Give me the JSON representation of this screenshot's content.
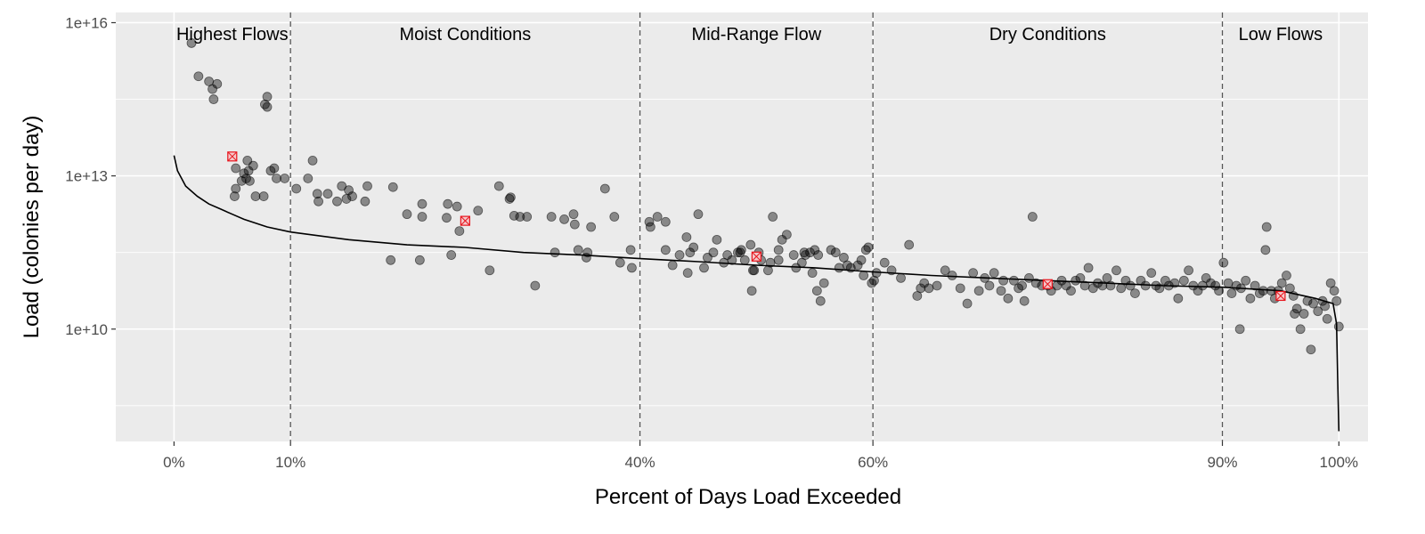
{
  "chart_data": {
    "type": "scatter",
    "title": "",
    "xlabel": "Percent of Days Load Exceeded",
    "ylabel": "Load (colonies per day)",
    "x_unit": "percent",
    "y_scale": "log10",
    "xlim": [
      -5,
      102.5
    ],
    "ylim_log10": [
      7.8,
      16.2
    ],
    "x_ticks": [
      {
        "value": 0,
        "label": "0%"
      },
      {
        "value": 10,
        "label": "10%"
      },
      {
        "value": 40,
        "label": "40%"
      },
      {
        "value": 60,
        "label": "60%"
      },
      {
        "value": 90,
        "label": "90%"
      },
      {
        "value": 100,
        "label": "100%"
      }
    ],
    "y_ticks": [
      {
        "value": 10000000000.0,
        "label": "1e+10"
      },
      {
        "value": 10000000000000.0,
        "label": "1e+13"
      },
      {
        "value": 1e+16,
        "label": "1e+16"
      }
    ],
    "y_minor_ticks_log10": [
      8.5,
      11.5,
      14.5
    ],
    "zone_boundaries": [
      10,
      40,
      60,
      90
    ],
    "zones": [
      {
        "label": "Highest Flows",
        "x": 5
      },
      {
        "label": "Moist Conditions",
        "x": 25
      },
      {
        "label": "Mid-Range Flow",
        "x": 50
      },
      {
        "label": "Dry Conditions",
        "x": 75
      },
      {
        "label": "Low Flows",
        "x": 95
      }
    ],
    "grid": true,
    "legend": "none",
    "colors": {
      "panel_background": "#ebebeb",
      "grid_line": "#ffffff",
      "points": "#000000",
      "curve": "#000000",
      "zone_line": "#555555",
      "marker": "#e8141c",
      "marker_fill": "#f4c7c9"
    },
    "series": [
      {
        "kind": "points",
        "points": [
          [
            1.5,
            15.6
          ],
          [
            2.1,
            14.95
          ],
          [
            3,
            14.85
          ],
          [
            3.3,
            14.7
          ],
          [
            3.4,
            14.5
          ],
          [
            3.7,
            14.8
          ],
          [
            5.2,
            12.6
          ],
          [
            5.3,
            12.75
          ],
          [
            5.3,
            13.15
          ],
          [
            5.8,
            12.9
          ],
          [
            6,
            13.05
          ],
          [
            6.2,
            12.95
          ],
          [
            6.3,
            13.3
          ],
          [
            6.4,
            13.1
          ],
          [
            6.5,
            12.9
          ],
          [
            6.8,
            13.2
          ],
          [
            7,
            12.6
          ],
          [
            7.7,
            12.6
          ],
          [
            7.8,
            14.4
          ],
          [
            8,
            14.35
          ],
          [
            8,
            14.55
          ],
          [
            8.3,
            13.1
          ],
          [
            8.6,
            13.15
          ],
          [
            8.8,
            12.95
          ],
          [
            9.5,
            12.95
          ],
          [
            10.5,
            12.75
          ],
          [
            11.5,
            12.95
          ],
          [
            11.9,
            13.3
          ],
          [
            12.3,
            12.65
          ],
          [
            12.4,
            12.5
          ],
          [
            13.2,
            12.65
          ],
          [
            14,
            12.5
          ],
          [
            14.4,
            12.8
          ],
          [
            14.8,
            12.55
          ],
          [
            15,
            12.72
          ],
          [
            15.3,
            12.6
          ],
          [
            16.4,
            12.5
          ],
          [
            16.6,
            12.8
          ],
          [
            18.6,
            11.35
          ],
          [
            18.8,
            12.78
          ],
          [
            20,
            12.25
          ],
          [
            21.1,
            11.35
          ],
          [
            21.3,
            12.45
          ],
          [
            21.3,
            12.2
          ],
          [
            23.4,
            12.18
          ],
          [
            23.5,
            12.45
          ],
          [
            23.8,
            11.45
          ],
          [
            24.3,
            12.4
          ],
          [
            24.5,
            11.92
          ],
          [
            26.1,
            12.32
          ],
          [
            27.1,
            11.15
          ],
          [
            27.9,
            12.8
          ],
          [
            28.8,
            12.55
          ],
          [
            28.9,
            12.58
          ],
          [
            29.2,
            12.22
          ],
          [
            29.7,
            12.2
          ],
          [
            30.3,
            12.2
          ],
          [
            31,
            10.85
          ],
          [
            32.4,
            12.2
          ],
          [
            32.7,
            11.5
          ],
          [
            33.5,
            12.15
          ],
          [
            34.3,
            12.25
          ],
          [
            34.4,
            12.05
          ],
          [
            34.7,
            11.55
          ],
          [
            35.4,
            11.4
          ],
          [
            35.5,
            11.5
          ],
          [
            35.8,
            12.0
          ],
          [
            37,
            12.75
          ],
          [
            37.8,
            12.2
          ],
          [
            38.3,
            11.3
          ],
          [
            39.2,
            11.55
          ],
          [
            39.3,
            11.2
          ],
          [
            40.8,
            12.1
          ],
          [
            40.9,
            12.0
          ],
          [
            41.5,
            12.2
          ],
          [
            42.2,
            11.55
          ],
          [
            42.2,
            12.1
          ],
          [
            42.8,
            11.25
          ],
          [
            43.4,
            11.45
          ],
          [
            44,
            11.8
          ],
          [
            44.1,
            11.1
          ],
          [
            44.3,
            11.5
          ],
          [
            44.6,
            11.6
          ],
          [
            45,
            12.25
          ],
          [
            45.5,
            11.2
          ],
          [
            45.8,
            11.4
          ],
          [
            46.3,
            11.5
          ],
          [
            46.6,
            11.75
          ],
          [
            47.2,
            11.3
          ],
          [
            47.5,
            11.45
          ],
          [
            47.9,
            11.35
          ],
          [
            48.4,
            11.5
          ],
          [
            48.6,
            11.5
          ],
          [
            48.7,
            11.55
          ],
          [
            49,
            11.35
          ],
          [
            49.5,
            11.65
          ],
          [
            49.6,
            10.75
          ],
          [
            49.7,
            11.15
          ],
          [
            49.8,
            11.15
          ],
          [
            50.2,
            11.5
          ],
          [
            50.4,
            11.35
          ],
          [
            51,
            11.15
          ],
          [
            51.2,
            11.3
          ],
          [
            51.4,
            12.2
          ],
          [
            51.9,
            11.35
          ],
          [
            51.9,
            11.55
          ],
          [
            52.2,
            11.75
          ],
          [
            52.6,
            11.85
          ],
          [
            53.2,
            11.45
          ],
          [
            53.4,
            11.2
          ],
          [
            53.9,
            11.3
          ],
          [
            54.1,
            11.5
          ],
          [
            54.2,
            11.45
          ],
          [
            54.6,
            11.5
          ],
          [
            54.8,
            11.1
          ],
          [
            55,
            11.55
          ],
          [
            55.2,
            10.75
          ],
          [
            55.3,
            11.45
          ],
          [
            55.5,
            10.55
          ],
          [
            55.8,
            10.9
          ],
          [
            56.4,
            11.55
          ],
          [
            56.8,
            11.5
          ],
          [
            57.1,
            11.2
          ],
          [
            57.5,
            11.4
          ],
          [
            57.8,
            11.25
          ],
          [
            58.1,
            11.2
          ],
          [
            58.7,
            11.25
          ],
          [
            59,
            11.35
          ],
          [
            59.2,
            11.05
          ],
          [
            59.4,
            11.55
          ],
          [
            59.6,
            11.6
          ],
          [
            59.9,
            10.9
          ],
          [
            60.1,
            10.95
          ],
          [
            60.3,
            11.1
          ],
          [
            61,
            11.3
          ],
          [
            61.6,
            11.15
          ],
          [
            62.4,
            11.0
          ],
          [
            63.1,
            11.65
          ],
          [
            63.8,
            10.65
          ],
          [
            64.1,
            10.8
          ],
          [
            64.4,
            10.9
          ],
          [
            64.8,
            10.8
          ],
          [
            65.5,
            10.85
          ],
          [
            66.2,
            11.15
          ],
          [
            66.8,
            11.05
          ],
          [
            67.5,
            10.8
          ],
          [
            68.1,
            10.5
          ],
          [
            68.6,
            11.1
          ],
          [
            69.1,
            10.75
          ],
          [
            69.6,
            11.0
          ],
          [
            70,
            10.85
          ],
          [
            70.4,
            11.1
          ],
          [
            71,
            10.75
          ],
          [
            71.2,
            10.95
          ],
          [
            71.6,
            10.6
          ],
          [
            72.1,
            10.95
          ],
          [
            72.5,
            10.8
          ],
          [
            72.8,
            10.85
          ],
          [
            73,
            10.55
          ],
          [
            73.4,
            11.0
          ],
          [
            73.7,
            12.2
          ],
          [
            74,
            10.9
          ],
          [
            74.5,
            10.85
          ],
          [
            75,
            10.85
          ],
          [
            75.3,
            10.75
          ],
          [
            75.8,
            10.85
          ],
          [
            76.2,
            10.95
          ],
          [
            76.6,
            10.85
          ],
          [
            77,
            10.75
          ],
          [
            77.4,
            10.95
          ],
          [
            77.8,
            11.0
          ],
          [
            78.2,
            10.85
          ],
          [
            78.5,
            11.2
          ],
          [
            78.9,
            10.8
          ],
          [
            79.3,
            10.9
          ],
          [
            79.7,
            10.85
          ],
          [
            80.1,
            11.0
          ],
          [
            80.4,
            10.85
          ],
          [
            80.9,
            11.15
          ],
          [
            81.3,
            10.8
          ],
          [
            81.7,
            10.95
          ],
          [
            82.1,
            10.85
          ],
          [
            82.5,
            10.7
          ],
          [
            83,
            10.95
          ],
          [
            83.4,
            10.85
          ],
          [
            83.9,
            11.1
          ],
          [
            84.3,
            10.85
          ],
          [
            84.6,
            10.8
          ],
          [
            85.1,
            10.95
          ],
          [
            85.4,
            10.85
          ],
          [
            85.9,
            10.9
          ],
          [
            86.2,
            10.6
          ],
          [
            86.7,
            10.95
          ],
          [
            87.1,
            11.15
          ],
          [
            87.5,
            10.85
          ],
          [
            87.9,
            10.75
          ],
          [
            88.3,
            10.85
          ],
          [
            88.6,
            11.0
          ],
          [
            89,
            10.9
          ],
          [
            89.4,
            10.85
          ],
          [
            89.7,
            10.75
          ],
          [
            90.1,
            11.3
          ],
          [
            90.5,
            10.9
          ],
          [
            90.8,
            10.7
          ],
          [
            91.2,
            10.85
          ],
          [
            91.6,
            10.8
          ],
          [
            92,
            10.95
          ],
          [
            92.4,
            10.6
          ],
          [
            92.8,
            10.85
          ],
          [
            93.2,
            10.7
          ],
          [
            93.5,
            10.75
          ],
          [
            93.7,
            11.55
          ],
          [
            93.8,
            12.0
          ],
          [
            94.2,
            10.75
          ],
          [
            94.5,
            10.6
          ],
          [
            94.8,
            10.75
          ],
          [
            95.1,
            10.9
          ],
          [
            95.5,
            11.05
          ],
          [
            95.8,
            10.8
          ],
          [
            96.1,
            10.65
          ],
          [
            96.4,
            10.4
          ],
          [
            96.7,
            10.0
          ],
          [
            97,
            10.3
          ],
          [
            97.3,
            10.55
          ],
          [
            97.6,
            9.6
          ],
          [
            97.8,
            10.5
          ],
          [
            98.2,
            10.35
          ],
          [
            98.6,
            10.55
          ],
          [
            98.8,
            10.45
          ],
          [
            99,
            10.2
          ],
          [
            99.3,
            10.9
          ],
          [
            99.6,
            10.75
          ],
          [
            99.8,
            10.55
          ],
          [
            100,
            10.05
          ],
          [
            91.5,
            10.0
          ],
          [
            96.2,
            10.3
          ]
        ]
      },
      {
        "kind": "duration-curve",
        "points": [
          [
            0,
            13.4
          ],
          [
            0.3,
            13.1
          ],
          [
            1,
            12.8
          ],
          [
            2,
            12.6
          ],
          [
            3,
            12.45
          ],
          [
            4,
            12.35
          ],
          [
            5,
            12.25
          ],
          [
            6,
            12.15
          ],
          [
            8,
            12.0
          ],
          [
            10,
            11.9
          ],
          [
            15,
            11.75
          ],
          [
            20,
            11.65
          ],
          [
            25,
            11.6
          ],
          [
            30,
            11.5
          ],
          [
            35,
            11.45
          ],
          [
            40,
            11.38
          ],
          [
            45,
            11.32
          ],
          [
            50,
            11.25
          ],
          [
            55,
            11.2
          ],
          [
            60,
            11.12
          ],
          [
            65,
            11.05
          ],
          [
            70,
            11.0
          ],
          [
            75,
            10.95
          ],
          [
            80,
            10.9
          ],
          [
            85,
            10.85
          ],
          [
            90,
            10.82
          ],
          [
            95,
            10.75
          ],
          [
            98,
            10.6
          ],
          [
            99.5,
            10.5
          ],
          [
            99.8,
            10.1
          ],
          [
            99.9,
            9.0
          ],
          [
            100,
            8.0
          ]
        ]
      },
      {
        "kind": "zone-markers",
        "points": [
          [
            5,
            13.38
          ],
          [
            25,
            12.12
          ],
          [
            50,
            11.42
          ],
          [
            75,
            10.88
          ],
          [
            95,
            10.65
          ]
        ]
      }
    ]
  }
}
